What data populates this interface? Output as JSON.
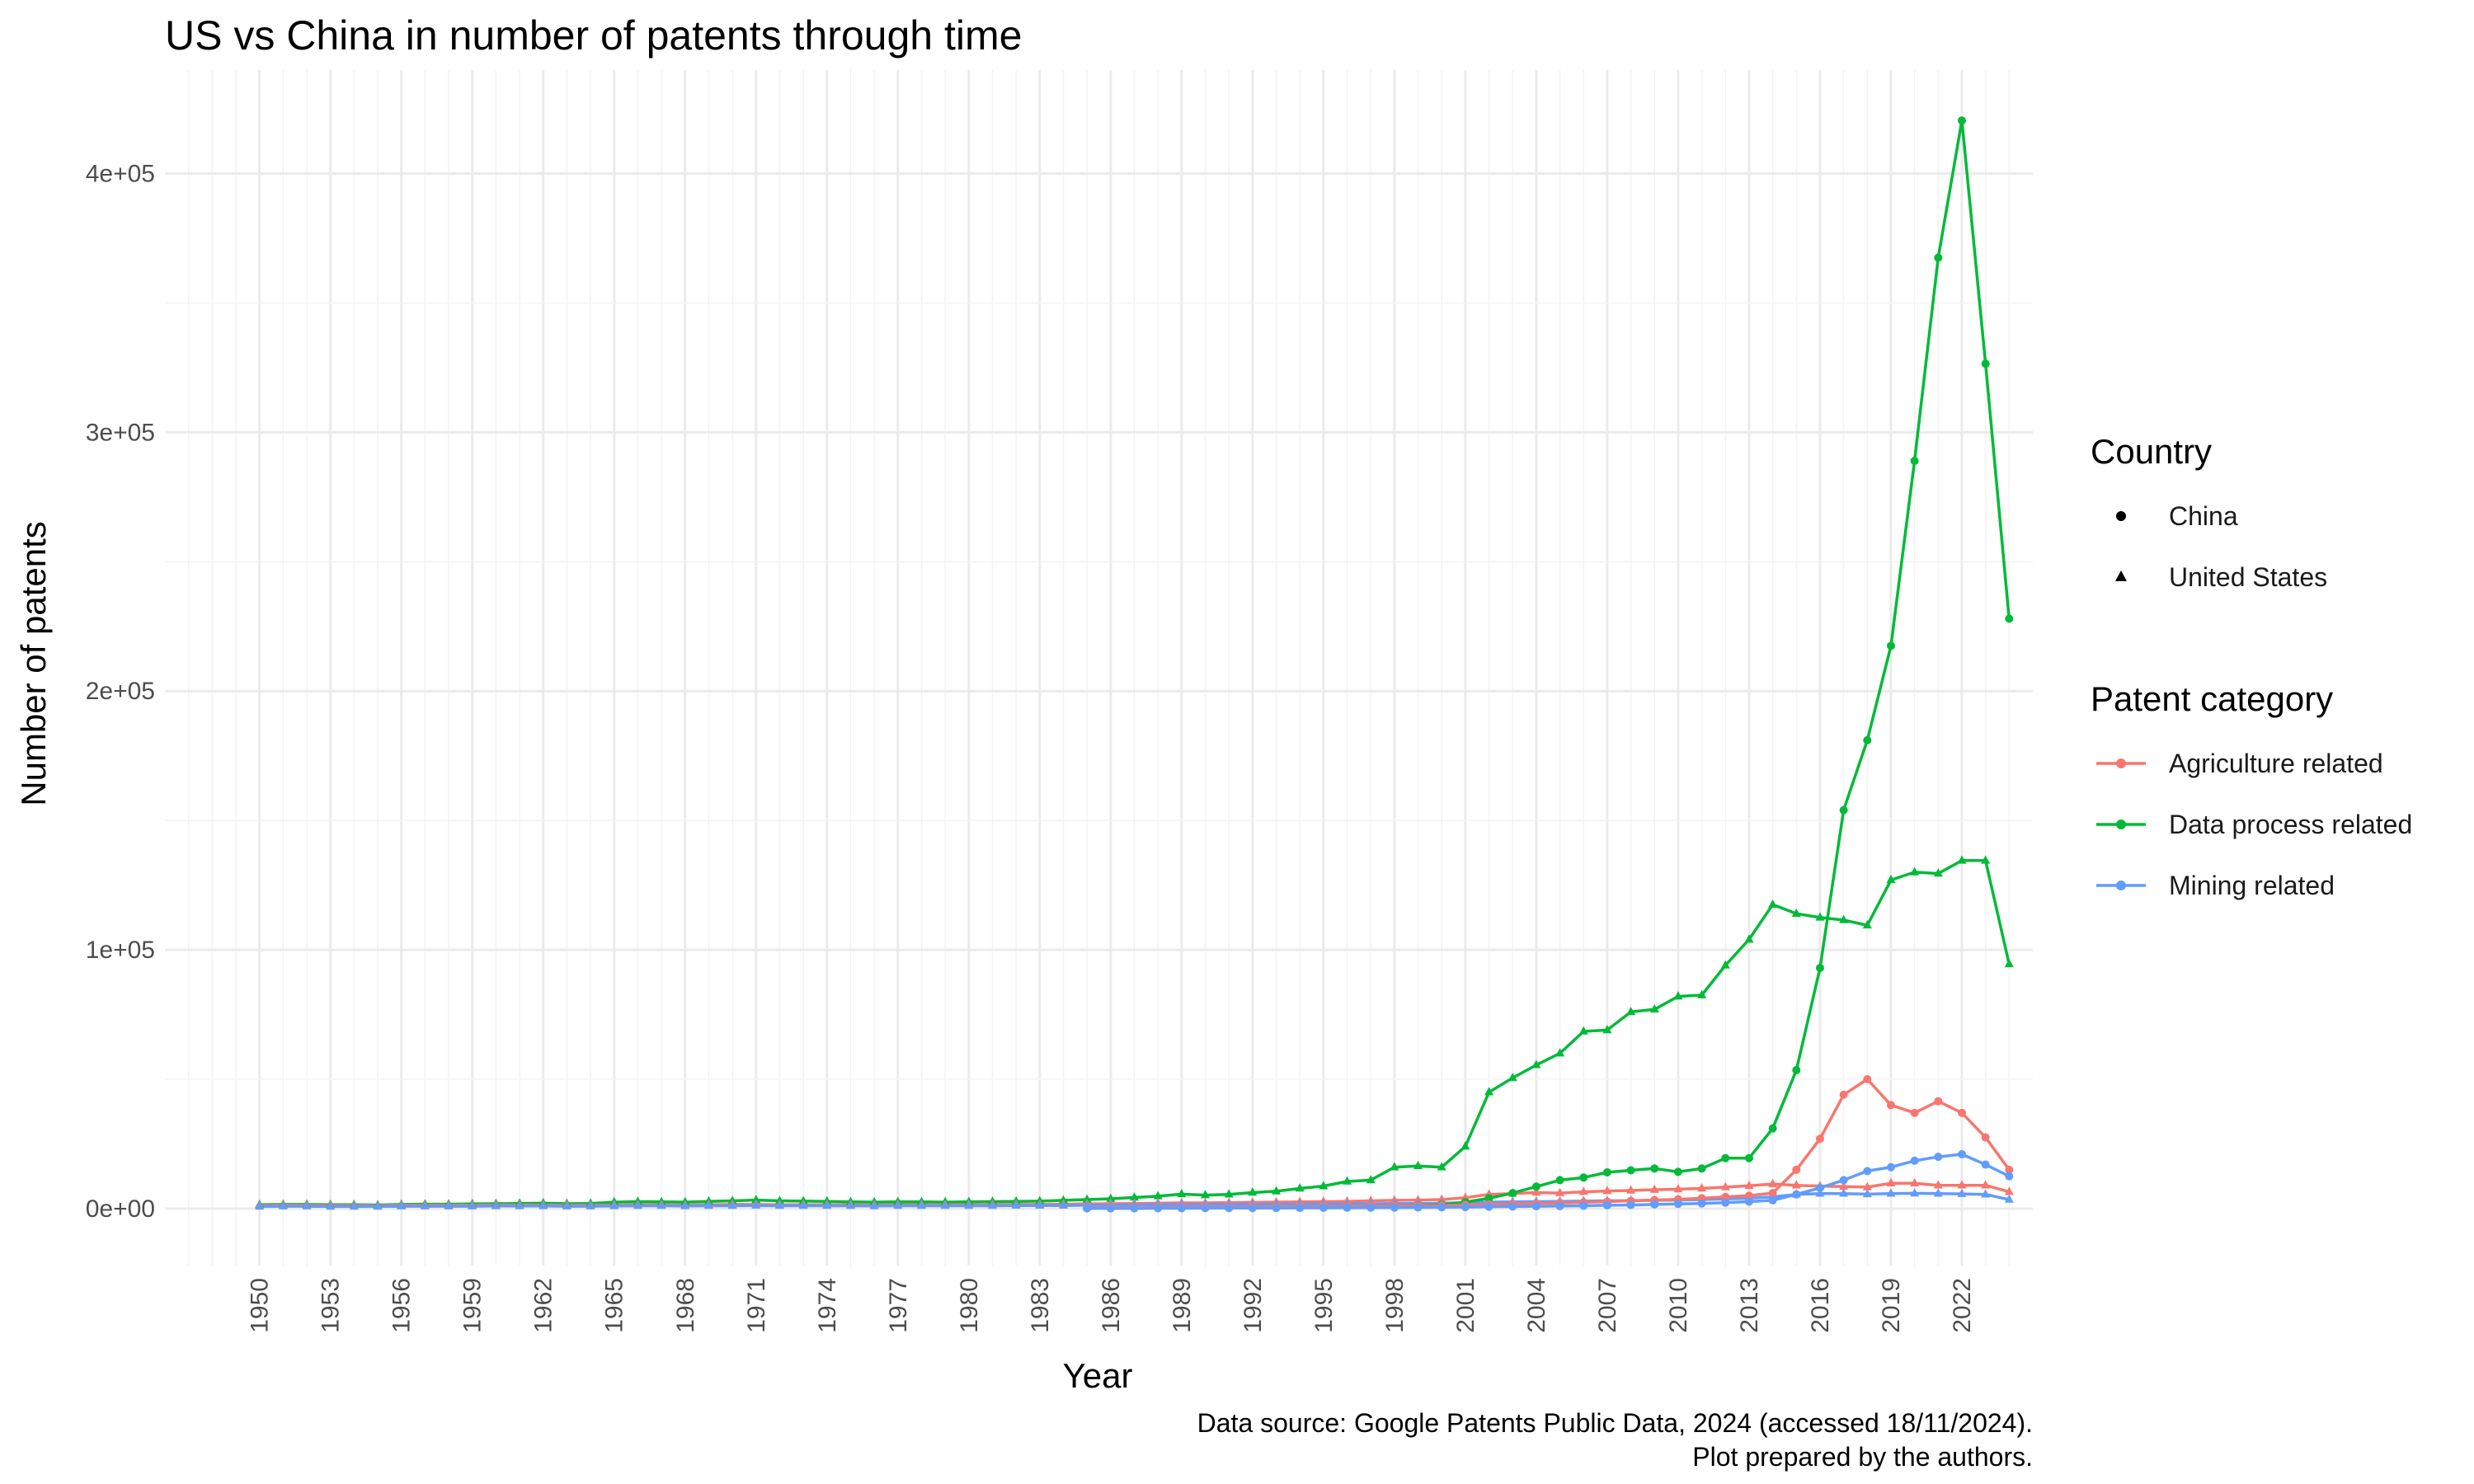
{
  "chart_data": {
    "type": "line",
    "title": "US vs China in number of patents through time",
    "xlabel": "Year",
    "ylabel": "Number of patents",
    "xlim": [
      1946,
      2025
    ],
    "ylim": [
      -22000,
      440000
    ],
    "yticks": [
      0,
      100000,
      200000,
      300000,
      400000
    ],
    "ytick_labels": [
      "0e+00",
      "1e+05",
      "2e+05",
      "3e+05",
      "4e+05"
    ],
    "xticks": [
      1950,
      1953,
      1956,
      1959,
      1962,
      1965,
      1968,
      1971,
      1974,
      1977,
      1980,
      1983,
      1986,
      1989,
      1992,
      1995,
      1998,
      2001,
      2004,
      2007,
      2010,
      2013,
      2016,
      2019,
      2022
    ],
    "grid": true,
    "colors": {
      "Agriculture related": "#F8766D",
      "Data process related": "#00BA38",
      "Mining related": "#619CFF"
    },
    "legend": {
      "placement": "right",
      "country_title": "Country",
      "country_items": [
        {
          "label": "China",
          "shape": "circle"
        },
        {
          "label": "United States",
          "shape": "triangle"
        }
      ],
      "category_title": "Patent category",
      "category_items": [
        "Agriculture related",
        "Data process related",
        "Mining related"
      ]
    },
    "caption_line1": "Data source: Google Patents Public Data, 2024 (accessed 18/11/2024).",
    "caption_line2": "Plot prepared by the authors.",
    "series": [
      {
        "country": "United States",
        "category": "Data process related",
        "shape": "triangle",
        "x": [
          1950,
          1951,
          1952,
          1953,
          1954,
          1955,
          1956,
          1957,
          1958,
          1959,
          1960,
          1961,
          1962,
          1963,
          1964,
          1965,
          1966,
          1967,
          1968,
          1969,
          1970,
          1971,
          1972,
          1973,
          1974,
          1975,
          1976,
          1977,
          1978,
          1979,
          1980,
          1981,
          1982,
          1983,
          1984,
          1985,
          1986,
          1987,
          1988,
          1989,
          1990,
          1991,
          1992,
          1993,
          1994,
          1995,
          1996,
          1997,
          1998,
          1999,
          2000,
          2001,
          2002,
          2003,
          2004,
          2005,
          2006,
          2007,
          2008,
          2009,
          2010,
          2011,
          2012,
          2013,
          2014,
          2015,
          2016,
          2017,
          2018,
          2019,
          2020,
          2021,
          2022,
          2023,
          2024
        ],
        "y": [
          1500,
          1600,
          1600,
          1500,
          1500,
          1400,
          1600,
          1700,
          1700,
          1800,
          1900,
          2000,
          2100,
          1900,
          2000,
          2500,
          2700,
          2600,
          2500,
          2800,
          3000,
          3300,
          3000,
          2900,
          2800,
          2600,
          2500,
          2600,
          2600,
          2500,
          2600,
          2700,
          2800,
          2900,
          3200,
          3500,
          3800,
          4300,
          4800,
          5600,
          5200,
          5500,
          6200,
          6700,
          7800,
          8700,
          10500,
          11000,
          16000,
          16500,
          16000,
          24000,
          45000,
          50500,
          55500,
          60000,
          68500,
          69000,
          76000,
          77000,
          82000,
          82500,
          94000,
          104000,
          117500,
          114000,
          112500,
          111500,
          109500,
          127000,
          130000,
          129500,
          134500,
          134500,
          94500
        ]
      },
      {
        "country": "United States",
        "category": "Agriculture related",
        "shape": "triangle",
        "x": [
          1950,
          1951,
          1952,
          1953,
          1954,
          1955,
          1956,
          1957,
          1958,
          1959,
          1960,
          1961,
          1962,
          1963,
          1964,
          1965,
          1966,
          1967,
          1968,
          1969,
          1970,
          1971,
          1972,
          1973,
          1974,
          1975,
          1976,
          1977,
          1978,
          1979,
          1980,
          1981,
          1982,
          1983,
          1984,
          1985,
          1986,
          1987,
          1988,
          1989,
          1990,
          1991,
          1992,
          1993,
          1994,
          1995,
          1996,
          1997,
          1998,
          1999,
          2000,
          2001,
          2002,
          2003,
          2004,
          2005,
          2006,
          2007,
          2008,
          2009,
          2010,
          2011,
          2012,
          2013,
          2014,
          2015,
          2016,
          2017,
          2018,
          2019,
          2020,
          2021,
          2022,
          2023,
          2024
        ],
        "y": [
          1200,
          1300,
          1300,
          1200,
          1200,
          1100,
          1300,
          1300,
          1300,
          1300,
          1400,
          1400,
          1400,
          1300,
          1300,
          1400,
          1500,
          1500,
          1400,
          1500,
          1600,
          1600,
          1500,
          1500,
          1500,
          1500,
          1400,
          1500,
          1500,
          1500,
          1500,
          1600,
          1600,
          1600,
          1700,
          1800,
          1900,
          2000,
          2100,
          2200,
          2200,
          2300,
          2400,
          2500,
          2600,
          2700,
          2800,
          3000,
          3200,
          3300,
          3500,
          4200,
          5500,
          5800,
          6200,
          6000,
          6500,
          6800,
          7000,
          7300,
          7500,
          7800,
          8300,
          8800,
          9500,
          9000,
          8700,
          8500,
          8300,
          9800,
          9800,
          9000,
          9000,
          9000,
          6500
        ]
      },
      {
        "country": "United States",
        "category": "Mining related",
        "shape": "triangle",
        "x": [
          1950,
          1951,
          1952,
          1953,
          1954,
          1955,
          1956,
          1957,
          1958,
          1959,
          1960,
          1961,
          1962,
          1963,
          1964,
          1965,
          1966,
          1967,
          1968,
          1969,
          1970,
          1971,
          1972,
          1973,
          1974,
          1975,
          1976,
          1977,
          1978,
          1979,
          1980,
          1981,
          1982,
          1983,
          1984,
          1985,
          1986,
          1987,
          1988,
          1989,
          1990,
          1991,
          1992,
          1993,
          1994,
          1995,
          1996,
          1997,
          1998,
          1999,
          2000,
          2001,
          2002,
          2003,
          2004,
          2005,
          2006,
          2007,
          2008,
          2009,
          2010,
          2011,
          2012,
          2013,
          2014,
          2015,
          2016,
          2017,
          2018,
          2019,
          2020,
          2021,
          2022,
          2023,
          2024
        ],
        "y": [
          800,
          900,
          900,
          800,
          800,
          800,
          900,
          900,
          900,
          900,
          1000,
          1000,
          1000,
          900,
          900,
          1000,
          1100,
          1100,
          1000,
          1100,
          1100,
          1200,
          1100,
          1100,
          1100,
          1100,
          1000,
          1100,
          1100,
          1100,
          1100,
          1100,
          1200,
          1200,
          1200,
          1300,
          1300,
          1400,
          1500,
          1500,
          1500,
          1600,
          1600,
          1700,
          1700,
          1800,
          1800,
          1900,
          2000,
          2000,
          2100,
          2300,
          2500,
          2600,
          2700,
          2800,
          2900,
          3000,
          3100,
          3200,
          3300,
          3500,
          3700,
          4000,
          4500,
          5500,
          5800,
          5800,
          5600,
          5800,
          5900,
          5800,
          5700,
          5500,
          3500
        ]
      },
      {
        "country": "China",
        "category": "Data process related",
        "shape": "circle",
        "x": [
          1985,
          1986,
          1987,
          1988,
          1989,
          1990,
          1991,
          1992,
          1993,
          1994,
          1995,
          1996,
          1997,
          1998,
          1999,
          2000,
          2001,
          2002,
          2003,
          2004,
          2005,
          2006,
          2007,
          2008,
          2009,
          2010,
          2011,
          2012,
          2013,
          2014,
          2015,
          2016,
          2017,
          2018,
          2019,
          2020,
          2021,
          2022,
          2023,
          2024
        ],
        "y": [
          100,
          100,
          150,
          200,
          250,
          300,
          350,
          400,
          500,
          600,
          700,
          800,
          900,
          1000,
          1200,
          1500,
          2500,
          4000,
          6000,
          8500,
          11000,
          12000,
          14000,
          14800,
          15500,
          14200,
          15500,
          19500,
          19500,
          31000,
          53500,
          93000,
          154000,
          181000,
          217500,
          289000,
          367500,
          420500,
          326500,
          228000
        ]
      },
      {
        "country": "China",
        "category": "Agriculture related",
        "shape": "circle",
        "x": [
          1985,
          1986,
          1987,
          1988,
          1989,
          1990,
          1991,
          1992,
          1993,
          1994,
          1995,
          1996,
          1997,
          1998,
          1999,
          2000,
          2001,
          2002,
          2003,
          2004,
          2005,
          2006,
          2007,
          2008,
          2009,
          2010,
          2011,
          2012,
          2013,
          2014,
          2015,
          2016,
          2017,
          2018,
          2019,
          2020,
          2021,
          2022,
          2023,
          2024
        ],
        "y": [
          300,
          300,
          350,
          400,
          450,
          500,
          550,
          600,
          650,
          700,
          750,
          800,
          900,
          1000,
          1100,
          1200,
          1400,
          1600,
          1800,
          2000,
          2200,
          2400,
          2700,
          3000,
          3300,
          3600,
          4000,
          4500,
          5000,
          6000,
          15000,
          27000,
          44000,
          50000,
          40000,
          37000,
          41500,
          37000,
          27500,
          15000
        ]
      },
      {
        "country": "China",
        "category": "Mining related",
        "shape": "circle",
        "x": [
          1985,
          1986,
          1987,
          1988,
          1989,
          1990,
          1991,
          1992,
          1993,
          1994,
          1995,
          1996,
          1997,
          1998,
          1999,
          2000,
          2001,
          2002,
          2003,
          2004,
          2005,
          2006,
          2007,
          2008,
          2009,
          2010,
          2011,
          2012,
          2013,
          2014,
          2015,
          2016,
          2017,
          2018,
          2019,
          2020,
          2021,
          2022,
          2023,
          2024
        ],
        "y": [
          100,
          100,
          120,
          140,
          160,
          180,
          200,
          220,
          250,
          280,
          300,
          330,
          360,
          400,
          450,
          500,
          600,
          700,
          800,
          900,
          1000,
          1100,
          1300,
          1400,
          1600,
          1800,
          2000,
          2300,
          2700,
          3200,
          5500,
          8000,
          11000,
          14500,
          16000,
          18500,
          20000,
          21000,
          17000,
          12500
        ]
      }
    ]
  }
}
